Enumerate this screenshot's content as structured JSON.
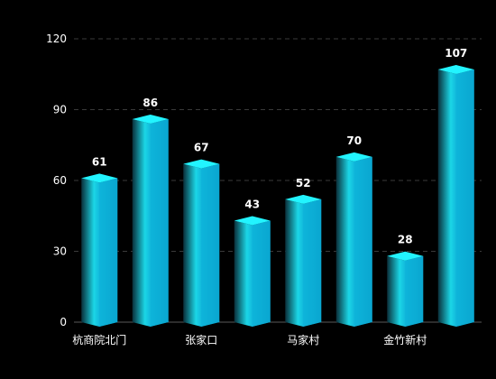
{
  "chart_data": {
    "type": "bar",
    "title": "",
    "xlabel": "",
    "ylabel": "",
    "categories": [
      "杭商院北门",
      "",
      "张家口",
      "",
      "马家村",
      "",
      "金竹新村",
      ""
    ],
    "values": [
      61,
      86,
      67,
      43,
      52,
      70,
      28,
      107
    ],
    "ylim": [
      0,
      120
    ],
    "yticks": [
      0,
      30,
      60,
      90,
      120
    ],
    "grid": true,
    "grid_style": "dashed",
    "colors": {
      "bar_left": "#0a3a48",
      "bar_mid": "#1fd4e0",
      "bar_right": "#0bb0d8",
      "bar_top": "#22f4ff",
      "grid": "#3a3a3a",
      "axis": "#5a5a5a",
      "text": "#ffffff"
    }
  }
}
